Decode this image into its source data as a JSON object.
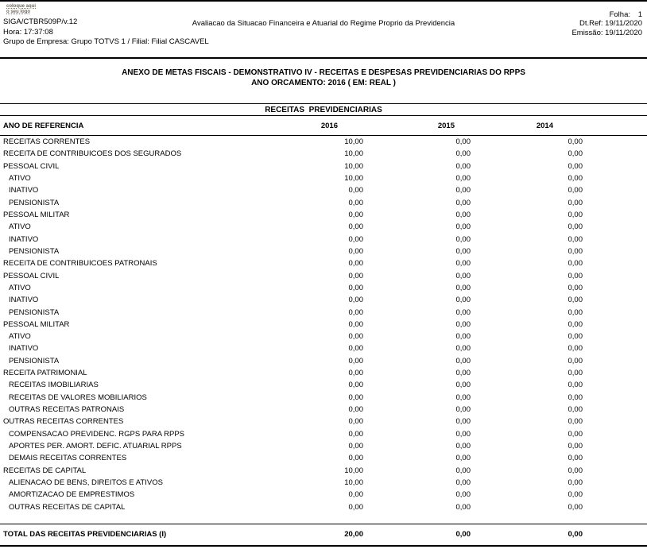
{
  "page": {
    "logo_line1": "coloque aqui",
    "logo_line2": "o seu logo",
    "program": "SIGA/CTBR509P/v.12",
    "hora": "Hora: 17:37:08",
    "grupo": "Grupo de Empresa: Grupo TOTVS 1 / Filial: Filial CASCAVEL",
    "report_title": "Avaliacao da Situacao Financeira e Atuarial do Regime Proprio da Previdencia",
    "folha_label": "Folha:",
    "folha_value": "1",
    "dt_ref": "Dt.Ref: 19/11/2020",
    "emissao": "Emissão: 19/11/2020"
  },
  "title": {
    "line1": "ANEXO DE METAS FISCAIS - DEMONSTRATIVO IV - RECEITAS E DESPESAS PREVIDENCIARIAS DO RPPS",
    "line2": "ANO ORCAMENTO: 2016 ( EM: REAL )"
  },
  "table": {
    "section_title": "RECEITAS  PREVIDENCIARIAS",
    "columns": [
      "ANO DE REFERENCIA",
      "2016",
      "2015",
      "2014"
    ],
    "rows": [
      {
        "label": "RECEITAS CORRENTES",
        "indent": 0,
        "values": [
          "10,00",
          "0,00",
          "0,00"
        ]
      },
      {
        "label": "RECEITA DE CONTRIBUICOES DOS SEGURADOS",
        "indent": 0,
        "values": [
          "10,00",
          "0,00",
          "0,00"
        ]
      },
      {
        "label": "PESSOAL CIVIL",
        "indent": 0,
        "values": [
          "10,00",
          "0,00",
          "0,00"
        ]
      },
      {
        "label": "ATIVO",
        "indent": 1,
        "values": [
          "10,00",
          "0,00",
          "0,00"
        ]
      },
      {
        "label": "INATIVO",
        "indent": 1,
        "values": [
          "0,00",
          "0,00",
          "0,00"
        ]
      },
      {
        "label": "PENSIONISTA",
        "indent": 1,
        "values": [
          "0,00",
          "0,00",
          "0,00"
        ]
      },
      {
        "label": "PESSOAL MILITAR",
        "indent": 0,
        "values": [
          "0,00",
          "0,00",
          "0,00"
        ]
      },
      {
        "label": "ATIVO",
        "indent": 1,
        "values": [
          "0,00",
          "0,00",
          "0,00"
        ]
      },
      {
        "label": "INATIVO",
        "indent": 1,
        "values": [
          "0,00",
          "0,00",
          "0,00"
        ]
      },
      {
        "label": "PENSIONISTA",
        "indent": 1,
        "values": [
          "0,00",
          "0,00",
          "0,00"
        ]
      },
      {
        "label": "RECEITA DE CONTRIBUICOES PATRONAIS",
        "indent": 0,
        "values": [
          "0,00",
          "0,00",
          "0,00"
        ]
      },
      {
        "label": "PESSOAL CIVIL",
        "indent": 0,
        "values": [
          "0,00",
          "0,00",
          "0,00"
        ]
      },
      {
        "label": "ATIVO",
        "indent": 1,
        "values": [
          "0,00",
          "0,00",
          "0,00"
        ]
      },
      {
        "label": "INATIVO",
        "indent": 1,
        "values": [
          "0,00",
          "0,00",
          "0,00"
        ]
      },
      {
        "label": "PENSIONISTA",
        "indent": 1,
        "values": [
          "0,00",
          "0,00",
          "0,00"
        ]
      },
      {
        "label": "PESSOAL MILITAR",
        "indent": 0,
        "values": [
          "0,00",
          "0,00",
          "0,00"
        ]
      },
      {
        "label": "ATIVO",
        "indent": 1,
        "values": [
          "0,00",
          "0,00",
          "0,00"
        ]
      },
      {
        "label": "INATIVO",
        "indent": 1,
        "values": [
          "0,00",
          "0,00",
          "0,00"
        ]
      },
      {
        "label": "PENSIONISTA",
        "indent": 1,
        "values": [
          "0,00",
          "0,00",
          "0,00"
        ]
      },
      {
        "label": "RECEITA PATRIMONIAL",
        "indent": 0,
        "values": [
          "0,00",
          "0,00",
          "0,00"
        ]
      },
      {
        "label": "RECEITAS IMOBILIARIAS",
        "indent": 1,
        "values": [
          "0,00",
          "0,00",
          "0,00"
        ]
      },
      {
        "label": "RECEITAS DE VALORES MOBILIARIOS",
        "indent": 1,
        "values": [
          "0,00",
          "0,00",
          "0,00"
        ]
      },
      {
        "label": "OUTRAS RECEITAS PATRONAIS",
        "indent": 1,
        "values": [
          "0,00",
          "0,00",
          "0,00"
        ]
      },
      {
        "label": "OUTRAS RECEITAS CORRENTES",
        "indent": 0,
        "values": [
          "0,00",
          "0,00",
          "0,00"
        ]
      },
      {
        "label": "COMPENSACAO PREVIDENC. RGPS PARA RPPS",
        "indent": 1,
        "values": [
          "0,00",
          "0,00",
          "0,00"
        ]
      },
      {
        "label": "APORTES PER. AMORT. DEFIC. ATUARIAL RPPS",
        "indent": 1,
        "values": [
          "0,00",
          "0,00",
          "0,00"
        ]
      },
      {
        "label": "DEMAIS RECEITAS CORRENTES",
        "indent": 1,
        "values": [
          "0,00",
          "0,00",
          "0,00"
        ]
      },
      {
        "label": "RECEITAS DE CAPITAL",
        "indent": 0,
        "values": [
          "10,00",
          "0,00",
          "0,00"
        ]
      },
      {
        "label": "ALIENACAO DE BENS, DIREITOS E ATIVOS",
        "indent": 1,
        "values": [
          "10,00",
          "0,00",
          "0,00"
        ]
      },
      {
        "label": "AMORTIZACAO DE EMPRESTIMOS",
        "indent": 1,
        "values": [
          "0,00",
          "0,00",
          "0,00"
        ]
      },
      {
        "label": "OUTRAS RECEITAS DE CAPITAL",
        "indent": 1,
        "values": [
          "0,00",
          "0,00",
          "0,00"
        ]
      }
    ],
    "total": {
      "label": "TOTAL DAS RECEITAS PREVIDENCIARIAS (I)",
      "values": [
        "20,00",
        "0,00",
        "0,00"
      ]
    }
  }
}
